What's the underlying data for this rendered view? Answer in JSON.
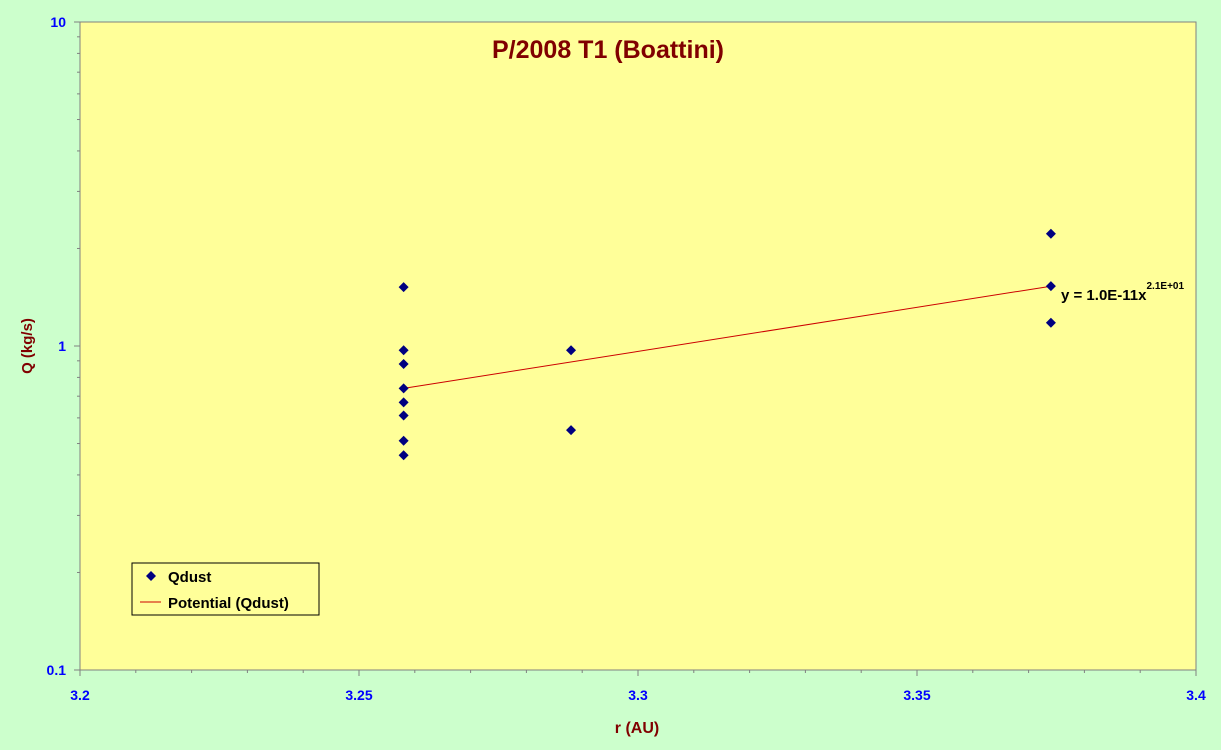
{
  "chart_data": {
    "type": "scatter",
    "title": "P/2008 T1 (Boattini)",
    "xlabel": "r (AU)",
    "ylabel": "Q (kg/s)",
    "xlim": [
      3.2,
      3.4
    ],
    "ylim": [
      0.1,
      10
    ],
    "y_scale": "log",
    "x_ticks": [
      "3.2",
      "3.25",
      "3.3",
      "3.35",
      "3.4"
    ],
    "x_tick_values": [
      3.2,
      3.25,
      3.3,
      3.35,
      3.4
    ],
    "y_ticks": [
      "0.1",
      "1",
      "10"
    ],
    "y_tick_values": [
      0.1,
      1,
      10
    ],
    "grid": false,
    "legend_position": "bottom-left",
    "series": [
      {
        "name": "Qdust",
        "kind": "scatter",
        "marker": "diamond",
        "color": "#000080",
        "points": [
          {
            "x": 3.258,
            "y": 1.52
          },
          {
            "x": 3.258,
            "y": 0.97
          },
          {
            "x": 3.258,
            "y": 0.88
          },
          {
            "x": 3.258,
            "y": 0.74
          },
          {
            "x": 3.258,
            "y": 0.67
          },
          {
            "x": 3.258,
            "y": 0.61
          },
          {
            "x": 3.258,
            "y": 0.51
          },
          {
            "x": 3.258,
            "y": 0.46
          },
          {
            "x": 3.288,
            "y": 0.97
          },
          {
            "x": 3.288,
            "y": 0.55
          },
          {
            "x": 3.374,
            "y": 2.22
          },
          {
            "x": 3.374,
            "y": 1.53
          },
          {
            "x": 3.374,
            "y": 1.18
          }
        ]
      },
      {
        "name": "Potential (Qdust)",
        "kind": "trendline",
        "color": "#cc0000",
        "points": [
          {
            "x": 3.258,
            "y": 0.74
          },
          {
            "x": 3.374,
            "y": 1.53
          }
        ]
      }
    ],
    "annotation": {
      "prefix": "y = 1.0E-11x",
      "superscript": "2.1E+01"
    }
  },
  "colors": {
    "background": "#ccffcc",
    "plot_area": "#ffff99",
    "title": "#800000",
    "axis_label": "#800000",
    "tick_label": "#0000ff"
  }
}
